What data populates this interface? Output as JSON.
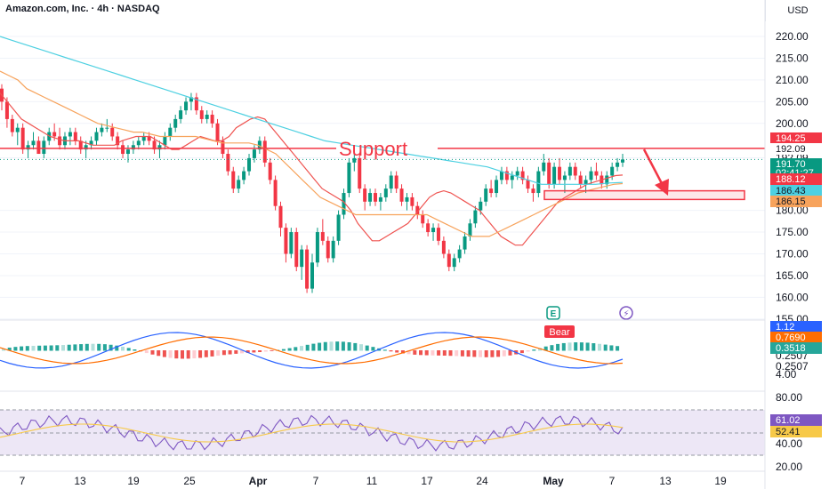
{
  "header": {
    "symbol_line": "Amazon.com, Inc. · 4h · NASDAQ",
    "currency": "USD"
  },
  "chart_data": [
    {
      "type": "candlestick",
      "timeframe": "4h",
      "ylim": [
        158,
        223
      ],
      "y_ticks": [
        "220.00",
        "215.00",
        "210.00",
        "205.00",
        "200.00",
        "192.09",
        "180.00",
        "175.00",
        "170.00",
        "165.00",
        "160.00",
        "155.00"
      ],
      "x_ticks": [
        "7",
        "13",
        "19",
        "25",
        "Apr",
        "7",
        "11",
        "17",
        "24",
        "May",
        "7",
        "13",
        "19"
      ],
      "ohlc": [
        [
          208,
          209,
          203,
          205
        ],
        [
          205,
          206,
          199,
          201
        ],
        [
          201,
          202,
          197,
          198
        ],
        [
          198,
          200,
          195,
          199
        ],
        [
          199,
          200,
          193,
          194
        ],
        [
          194,
          196,
          192,
          195
        ],
        [
          195,
          198,
          194,
          196
        ],
        [
          196,
          197,
          193,
          193
        ],
        [
          193,
          197,
          192,
          196
        ],
        [
          196,
          199,
          195,
          198
        ],
        [
          198,
          200,
          196,
          197
        ],
        [
          197,
          199,
          194,
          195
        ],
        [
          195,
          198,
          194,
          197
        ],
        [
          197,
          199,
          195,
          198
        ],
        [
          198,
          199,
          195,
          196
        ],
        [
          196,
          197,
          193,
          194
        ],
        [
          194,
          196,
          192,
          195
        ],
        [
          195,
          197,
          194,
          196
        ],
        [
          196,
          199,
          195,
          198
        ],
        [
          198,
          200,
          197,
          199
        ],
        [
          199,
          201,
          198,
          199
        ],
        [
          199,
          200,
          196,
          197
        ],
        [
          197,
          198,
          194,
          195
        ],
        [
          195,
          196,
          192,
          193
        ],
        [
          193,
          195,
          191,
          194
        ],
        [
          194,
          196,
          193,
          195
        ],
        [
          195,
          197,
          194,
          196
        ],
        [
          196,
          198,
          195,
          197
        ],
        [
          197,
          198,
          195,
          196
        ],
        [
          196,
          197,
          193,
          194
        ],
        [
          194,
          196,
          192,
          195
        ],
        [
          195,
          198,
          194,
          197
        ],
        [
          197,
          200,
          196,
          199
        ],
        [
          199,
          202,
          198,
          201
        ],
        [
          201,
          204,
          200,
          203
        ],
        [
          203,
          206,
          202,
          205
        ],
        [
          205,
          207,
          203,
          206
        ],
        [
          206,
          207,
          202,
          203
        ],
        [
          203,
          204,
          200,
          201
        ],
        [
          201,
          203,
          200,
          202
        ],
        [
          202,
          203,
          199,
          200
        ],
        [
          200,
          201,
          195,
          196
        ],
        [
          196,
          197,
          192,
          193
        ],
        [
          193,
          194,
          188,
          189
        ],
        [
          189,
          190,
          184,
          185
        ],
        [
          185,
          188,
          184,
          187
        ],
        [
          187,
          190,
          186,
          189
        ],
        [
          189,
          193,
          188,
          192
        ],
        [
          192,
          195,
          191,
          194
        ],
        [
          194,
          197,
          193,
          196
        ],
        [
          196,
          197,
          190,
          191
        ],
        [
          191,
          192,
          186,
          187
        ],
        [
          187,
          188,
          180,
          181
        ],
        [
          181,
          182,
          174,
          176
        ],
        [
          176,
          177,
          168,
          170
        ],
        [
          170,
          176,
          169,
          175
        ],
        [
          175,
          176,
          166,
          167
        ],
        [
          167,
          172,
          164,
          171
        ],
        [
          171,
          172,
          161,
          162
        ],
        [
          162,
          170,
          161,
          168
        ],
        [
          168,
          176,
          167,
          175
        ],
        [
          175,
          178,
          172,
          173
        ],
        [
          173,
          174,
          168,
          169
        ],
        [
          169,
          174,
          168,
          173
        ],
        [
          173,
          180,
          172,
          179
        ],
        [
          179,
          185,
          178,
          184
        ],
        [
          184,
          192,
          183,
          191
        ],
        [
          191,
          194,
          189,
          192
        ],
        [
          192,
          193,
          184,
          185
        ],
        [
          185,
          186,
          180,
          182
        ],
        [
          182,
          185,
          181,
          184
        ],
        [
          184,
          185,
          181,
          182
        ],
        [
          182,
          184,
          180,
          183
        ],
        [
          183,
          186,
          182,
          185
        ],
        [
          185,
          189,
          184,
          188
        ],
        [
          188,
          189,
          184,
          185
        ],
        [
          185,
          186,
          181,
          182
        ],
        [
          182,
          184,
          180,
          183
        ],
        [
          183,
          184,
          180,
          181
        ],
        [
          181,
          182,
          178,
          179
        ],
        [
          179,
          180,
          176,
          177
        ],
        [
          177,
          178,
          174,
          175
        ],
        [
          175,
          177,
          173,
          176
        ],
        [
          176,
          177,
          172,
          173
        ],
        [
          173,
          174,
          169,
          170
        ],
        [
          170,
          171,
          166,
          167
        ],
        [
          167,
          170,
          166,
          169
        ],
        [
          169,
          172,
          168,
          171
        ],
        [
          171,
          175,
          170,
          174
        ],
        [
          174,
          178,
          173,
          177
        ],
        [
          177,
          181,
          176,
          180
        ],
        [
          180,
          183,
          179,
          182
        ],
        [
          182,
          186,
          181,
          185
        ],
        [
          185,
          187,
          183,
          184
        ],
        [
          184,
          188,
          183,
          187
        ],
        [
          187,
          190,
          186,
          189
        ],
        [
          189,
          190,
          186,
          187
        ],
        [
          187,
          189,
          185,
          188
        ],
        [
          188,
          190,
          187,
          189
        ],
        [
          189,
          190,
          186,
          187
        ],
        [
          187,
          188,
          184,
          185
        ],
        [
          185,
          186,
          182,
          184
        ],
        [
          184,
          190,
          183,
          189
        ],
        [
          189,
          193,
          188,
          191
        ],
        [
          191,
          192,
          185,
          186
        ],
        [
          186,
          191,
          185,
          190
        ],
        [
          190,
          192,
          186,
          187
        ],
        [
          187,
          189,
          184,
          188
        ],
        [
          188,
          191,
          187,
          190
        ],
        [
          190,
          191,
          187,
          188
        ],
        [
          188,
          189,
          185,
          186
        ],
        [
          186,
          188,
          184,
          187
        ],
        [
          187,
          190,
          186,
          189
        ],
        [
          189,
          191,
          187,
          188
        ],
        [
          188,
          189,
          185,
          186
        ],
        [
          186,
          189,
          185,
          188
        ],
        [
          188,
          191,
          187,
          190
        ],
        [
          190,
          192,
          189,
          191
        ],
        [
          191,
          193,
          190,
          191.7
        ]
      ],
      "moving_averages": [
        {
          "color": "#ef5350",
          "values": [
            207,
            205,
            203,
            201,
            200,
            199,
            198,
            197,
            196.5,
            196,
            196,
            196,
            195.5,
            195,
            195,
            195,
            195,
            196,
            196.5,
            197,
            197,
            197,
            196,
            195,
            194,
            194,
            195,
            196,
            197,
            196.5,
            196,
            196,
            197,
            199,
            200,
            201,
            201.5,
            201,
            199,
            197,
            195,
            193,
            191,
            189,
            187,
            185,
            184,
            183,
            182,
            180,
            177,
            175,
            173,
            173,
            174,
            175,
            176,
            177,
            179,
            181,
            183,
            184,
            184.5,
            184,
            183,
            182,
            181,
            180,
            178,
            176,
            174,
            173,
            172,
            172,
            174,
            176,
            178,
            180,
            182,
            183,
            184,
            185,
            186,
            186.5,
            187,
            187.5,
            188,
            188.12
          ]
        },
        {
          "color": "#f7a35c",
          "values": [
            212,
            211,
            210,
            208,
            207,
            206,
            205,
            204,
            203,
            202,
            201,
            200,
            199.5,
            199,
            198.5,
            198,
            198,
            197.5,
            197,
            197,
            197,
            197,
            197,
            196.5,
            196,
            195.5,
            195.5,
            195.5,
            195.5,
            195,
            194,
            193,
            191,
            189,
            187,
            185,
            183,
            182,
            181,
            180,
            179,
            179,
            179,
            179,
            179,
            179,
            179,
            179,
            179,
            178,
            177,
            176,
            175,
            174,
            174,
            174,
            175,
            176,
            177,
            178,
            179,
            180,
            181,
            182,
            183,
            184,
            184.5,
            185,
            185.5,
            186,
            186.15
          ]
        },
        {
          "color": "#4dd0e1",
          "values": [
            220,
            219,
            218,
            217,
            216,
            215,
            214,
            213,
            212,
            211,
            210,
            209,
            208,
            207,
            206,
            205,
            204,
            203,
            202,
            201,
            200,
            199,
            198,
            197,
            196,
            195.5,
            195,
            194.5,
            194,
            193.5,
            193,
            192.5,
            192,
            191.5,
            191,
            190.5,
            190,
            189,
            188,
            187,
            186,
            186,
            186,
            186,
            186,
            186.3,
            186.43
          ]
        }
      ],
      "price_tags": [
        {
          "label": "194.25",
          "value": 194.25,
          "color": "#f23645"
        },
        {
          "label": "192.09",
          "value": 192.09,
          "color": "#131722"
        },
        {
          "label": "191.70",
          "sub": "02:41:27",
          "value": 191.7,
          "color": "#089981"
        },
        {
          "label": "188.12",
          "value": 188.12,
          "color": "#f23645"
        },
        {
          "label": "186.43",
          "value": 186.43,
          "color": "#4dd0e1"
        },
        {
          "label": "186.15",
          "value": 186.15,
          "color": "#f7a35c"
        }
      ],
      "annotations": [
        {
          "kind": "hline",
          "value": 194.25,
          "label": "Support",
          "color": "#f23645"
        },
        {
          "kind": "box",
          "value_top": 184.5,
          "value_bottom": 182.5,
          "color": "#f23645"
        },
        {
          "kind": "arrow_down",
          "color": "#f23645"
        }
      ],
      "event_markers": [
        {
          "label": "E",
          "color": "#089981"
        },
        {
          "label": "⚡",
          "color": "#7e57c2"
        }
      ]
    },
    {
      "type": "macd",
      "y_ticks": [
        "0.2507",
        "0.2507",
        "4.00"
      ],
      "tags": [
        {
          "label": "1.12",
          "color": "#2962ff"
        },
        {
          "label": "0.7690",
          "color": "#ff6d00"
        },
        {
          "label": "0.3518",
          "color": "#26a69a"
        }
      ],
      "badge": "Bear"
    },
    {
      "type": "rsi",
      "y_ticks": [
        "80.00",
        "40.00",
        "20.00"
      ],
      "tags": [
        {
          "label": "61.02",
          "color": "#7e57c2"
        },
        {
          "label": "52.41",
          "color": "#f7c948"
        }
      ]
    }
  ],
  "colors": {
    "up": "#089981",
    "down": "#f23645",
    "grid": "#f0f3fa",
    "rsi_band": "#ede7f6"
  }
}
